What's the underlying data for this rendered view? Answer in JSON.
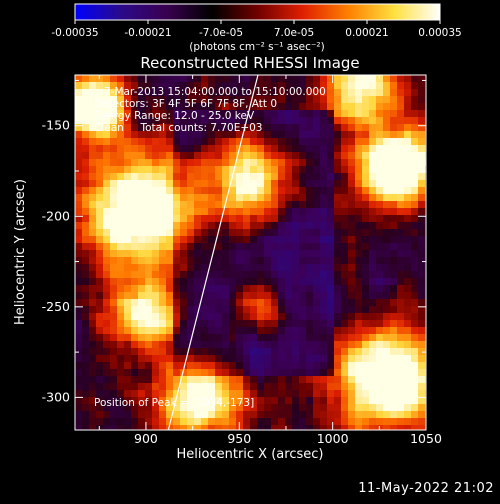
{
  "colorbar": {
    "tick_labels": [
      "-0.00035",
      "-0.00021",
      "-7.0e-05",
      "7.0e-05",
      "0.00021",
      "0.00035"
    ],
    "unit_label": "(photons cm⁻² s⁻¹ asec⁻²)",
    "range": [
      -0.00035,
      0.00035
    ],
    "colors": [
      "#0000ff",
      "#2a0a8a",
      "#3a0050",
      "#000000",
      "#700000",
      "#e02000",
      "#ff8000",
      "#ffe040",
      "#ffffff"
    ]
  },
  "annotations": {
    "time_range": "7-Mar-2013 15:04:00.000 to 15:10:00.000",
    "detectors": "Detectors: 3F 4F 5F 6F 7F 8F, Att 0",
    "energy": "Energy Range: 12.0 - 25.0 keV",
    "algorithm": "Clean     Total counts: 7.70E+03",
    "peak": "Position of Peak = [1034,-173]"
  },
  "timestamp": "11-May-2022 21:02",
  "chart_data": {
    "type": "heatmap",
    "title": "Reconstructed RHESSI Image",
    "xlabel": "Heliocentric X (arcsec)",
    "ylabel": "Heliocentric Y (arcsec)",
    "xlim": [
      862,
      1050
    ],
    "ylim": [
      -318,
      -122
    ],
    "x_ticks": [
      900,
      950,
      1000,
      1050
    ],
    "y_ticks": [
      -150,
      -200,
      -250,
      -300
    ],
    "limb_line": [
      [
        912,
        -318
      ],
      [
        960,
        -122
      ]
    ],
    "peak": [
      1034,
      -173
    ]
  }
}
